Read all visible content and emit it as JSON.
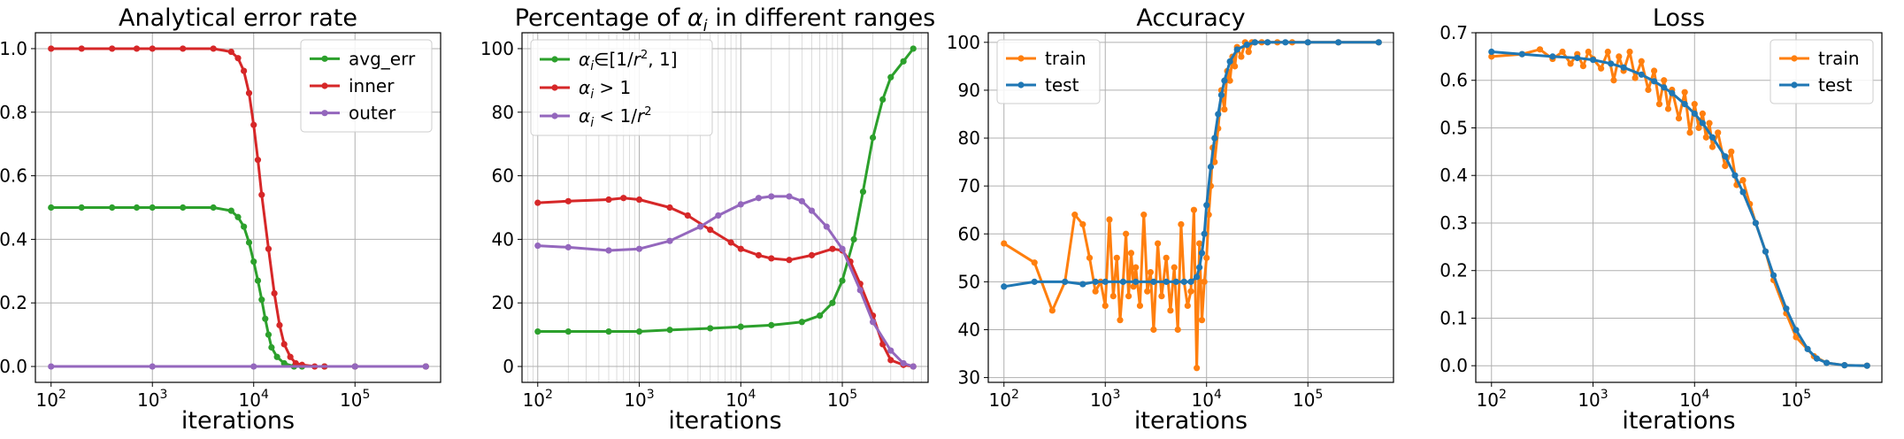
{
  "chart_data": [
    {
      "type": "line",
      "title": "Analytical error rate",
      "xlabel": "iterations",
      "xscale": "log",
      "xlim": [
        70,
        700000
      ],
      "ylim": [
        -0.05,
        1.05
      ],
      "yticks": [
        0.0,
        0.2,
        0.4,
        0.6,
        0.8,
        1.0
      ],
      "ytick_labels": [
        "0.0",
        "0.2",
        "0.4",
        "0.6",
        "0.8",
        "1.0"
      ],
      "grid": true,
      "legend_position": "top-right",
      "series": [
        {
          "name": "avg_err",
          "color": "#2ca02c",
          "x": [
            100,
            200,
            400,
            700,
            1000,
            2000,
            4000,
            6000,
            7000,
            8000,
            9000,
            10000,
            11000,
            12000,
            13000,
            14000,
            15000,
            17000,
            20000,
            25000,
            30000,
            50000,
            100000,
            500000
          ],
          "y": [
            0.5,
            0.5,
            0.5,
            0.5,
            0.5,
            0.5,
            0.5,
            0.49,
            0.47,
            0.44,
            0.39,
            0.33,
            0.27,
            0.21,
            0.15,
            0.1,
            0.06,
            0.03,
            0.01,
            0.0,
            0.0,
            0.0,
            0.0,
            0.0
          ]
        },
        {
          "name": "inner",
          "color": "#d62728",
          "x": [
            100,
            200,
            400,
            700,
            1000,
            2000,
            4000,
            6000,
            7000,
            8000,
            9000,
            10000,
            11000,
            12000,
            14000,
            16000,
            18000,
            20000,
            23000,
            26000,
            30000,
            40000,
            50000,
            100000,
            500000
          ],
          "y": [
            1.0,
            1.0,
            1.0,
            1.0,
            1.0,
            1.0,
            1.0,
            0.99,
            0.97,
            0.93,
            0.86,
            0.76,
            0.65,
            0.54,
            0.37,
            0.23,
            0.13,
            0.07,
            0.03,
            0.01,
            0.005,
            0.0,
            0.0,
            0.0,
            0.0
          ]
        },
        {
          "name": "outer",
          "color": "#9467bd",
          "x": [
            100,
            1000,
            10000,
            100000,
            500000
          ],
          "y": [
            0.0,
            0.0,
            0.0,
            0.0,
            0.0
          ]
        }
      ]
    },
    {
      "type": "line",
      "title_prefix": "Percentage of ",
      "title_symbol": "α",
      "title_sub": "i",
      "title_suffix": " in different ranges",
      "xlabel": "iterations",
      "xscale": "log",
      "xlim": [
        70,
        700000
      ],
      "ylim": [
        -5,
        105
      ],
      "yticks": [
        0,
        20,
        40,
        60,
        80,
        100
      ],
      "ytick_labels": [
        "0",
        "20",
        "40",
        "60",
        "80",
        "100"
      ],
      "grid": true,
      "minor_grid": true,
      "legend_position": "top-left",
      "series": [
        {
          "name": "αi∈[1/r2, 1]",
          "label_parts": [
            "α",
            "i",
            "∈[1/",
            "r",
            "2",
            ", 1]"
          ],
          "color": "#2ca02c",
          "x": [
            100,
            200,
            500,
            1000,
            2000,
            5000,
            10000,
            20000,
            40000,
            60000,
            80000,
            100000,
            130000,
            160000,
            200000,
            250000,
            300000,
            400000,
            500000
          ],
          "y": [
            11,
            11,
            11,
            11,
            11.5,
            12,
            12.5,
            13,
            14,
            16,
            20,
            27,
            40,
            55,
            72,
            84,
            91,
            96,
            100
          ]
        },
        {
          "name": "αi>1",
          "label_parts": [
            "α",
            "i",
            " > 1"
          ],
          "color": "#d62728",
          "x": [
            100,
            200,
            500,
            700,
            1000,
            2000,
            3000,
            5000,
            8000,
            10000,
            15000,
            20000,
            30000,
            50000,
            80000,
            100000,
            120000,
            150000,
            200000,
            250000,
            300000,
            400000,
            500000
          ],
          "y": [
            51.5,
            52,
            52.5,
            53,
            52.5,
            50,
            47.5,
            43,
            39,
            37,
            35,
            34,
            33.5,
            35,
            37,
            36.5,
            33,
            26,
            16,
            7,
            2,
            0.5,
            0
          ]
        },
        {
          "name": "αi<1/r2",
          "label_parts": [
            "α",
            "i",
            " < 1/",
            "r",
            "2",
            ""
          ],
          "color": "#9467bd",
          "x": [
            100,
            200,
            500,
            1000,
            2000,
            4000,
            6000,
            10000,
            15000,
            20000,
            30000,
            40000,
            50000,
            70000,
            100000,
            150000,
            200000,
            300000,
            400000,
            500000
          ],
          "y": [
            38,
            37.5,
            36.5,
            37,
            39.5,
            44,
            47.5,
            51,
            53,
            53.5,
            53.5,
            52,
            49,
            44,
            37,
            24,
            14,
            5,
            1,
            0
          ]
        }
      ]
    },
    {
      "type": "line",
      "title": "Accuracy",
      "xlabel": "iterations",
      "xscale": "log",
      "xlim": [
        70,
        700000
      ],
      "ylim": [
        29,
        102
      ],
      "yticks": [
        30,
        40,
        50,
        60,
        70,
        80,
        90,
        100
      ],
      "ytick_labels": [
        "30",
        "40",
        "50",
        "60",
        "70",
        "80",
        "90",
        "100"
      ],
      "grid": true,
      "legend_position": "top-left",
      "series": [
        {
          "name": "train",
          "color": "#ff7f0e",
          "x": [
            100,
            200,
            300,
            400,
            500,
            600,
            700,
            800,
            900,
            1000,
            1100,
            1200,
            1300,
            1400,
            1500,
            1600,
            1700,
            1800,
            1900,
            2000,
            2200,
            2400,
            2600,
            2800,
            3000,
            3300,
            3600,
            4000,
            4400,
            4800,
            5200,
            5600,
            6000,
            6500,
            7000,
            7500,
            8000,
            8500,
            9000,
            9500,
            10000,
            10500,
            11000,
            11500,
            12000,
            13000,
            14000,
            15000,
            16000,
            17000,
            18000,
            19000,
            20000,
            22000,
            24000,
            26000,
            28000,
            30000,
            35000,
            40000,
            50000,
            70000,
            100000,
            200000,
            500000
          ],
          "y": [
            58,
            54,
            44,
            50,
            64,
            62,
            55,
            48,
            50,
            45,
            63,
            47,
            55,
            42,
            50,
            60,
            47,
            56,
            49,
            53,
            45,
            64,
            48,
            52,
            40,
            58,
            47,
            55,
            44,
            53,
            40,
            62,
            50,
            45,
            48,
            65,
            32,
            58,
            42,
            50,
            55,
            64,
            70,
            78,
            75,
            82,
            90,
            86,
            94,
            92,
            97,
            95,
            99,
            97,
            100,
            98,
            100,
            100,
            100,
            100,
            100,
            100,
            100,
            100,
            100
          ]
        },
        {
          "name": "test",
          "color": "#1f77b4",
          "x": [
            100,
            200,
            400,
            600,
            800,
            1000,
            1500,
            2000,
            3000,
            4000,
            5000,
            6000,
            7000,
            8000,
            8500,
            9000,
            9500,
            10000,
            11000,
            12000,
            13000,
            14000,
            15000,
            17000,
            20000,
            25000,
            30000,
            40000,
            60000,
            100000,
            200000,
            500000
          ],
          "y": [
            49,
            50,
            50,
            49.5,
            50,
            50,
            50,
            50,
            50,
            50,
            50,
            50,
            50,
            51,
            53,
            56,
            60,
            66,
            74,
            80,
            85,
            89,
            92,
            96,
            98.5,
            99.5,
            100,
            100,
            100,
            100,
            100,
            100
          ]
        }
      ]
    },
    {
      "type": "line",
      "title": "Loss",
      "xlabel": "iterations",
      "xscale": "log",
      "xlim": [
        70,
        700000
      ],
      "ylim": [
        -0.035,
        0.7
      ],
      "yticks": [
        0.0,
        0.1,
        0.2,
        0.3,
        0.4,
        0.5,
        0.6,
        0.7
      ],
      "ytick_labels": [
        "0.0",
        "0.1",
        "0.2",
        "0.3",
        "0.4",
        "0.5",
        "0.6",
        "0.7"
      ],
      "grid": true,
      "legend_position": "top-right",
      "series": [
        {
          "name": "train",
          "color": "#ff7f0e",
          "x": [
            100,
            200,
            300,
            400,
            500,
            600,
            700,
            800,
            900,
            1000,
            1200,
            1400,
            1600,
            1800,
            2000,
            2300,
            2600,
            3000,
            3500,
            4000,
            4500,
            5000,
            5500,
            6000,
            7000,
            8000,
            9000,
            10000,
            11000,
            12000,
            13000,
            14000,
            15000,
            17000,
            20000,
            23000,
            26000,
            30000,
            35000,
            40000,
            50000,
            60000,
            80000,
            100000,
            150000,
            200000,
            300000,
            500000
          ],
          "y": [
            0.65,
            0.655,
            0.665,
            0.645,
            0.66,
            0.635,
            0.655,
            0.63,
            0.66,
            0.645,
            0.625,
            0.66,
            0.6,
            0.65,
            0.62,
            0.66,
            0.605,
            0.64,
            0.58,
            0.62,
            0.55,
            0.6,
            0.54,
            0.58,
            0.52,
            0.575,
            0.49,
            0.55,
            0.5,
            0.53,
            0.48,
            0.51,
            0.46,
            0.49,
            0.42,
            0.45,
            0.38,
            0.39,
            0.34,
            0.3,
            0.24,
            0.18,
            0.11,
            0.06,
            0.02,
            0.006,
            0.001,
            0.0
          ]
        },
        {
          "name": "test",
          "color": "#1f77b4",
          "x": [
            100,
            200,
            400,
            700,
            1000,
            1500,
            2000,
            3000,
            4000,
            5000,
            6000,
            8000,
            10000,
            12000,
            15000,
            20000,
            25000,
            30000,
            40000,
            50000,
            60000,
            80000,
            100000,
            130000,
            160000,
            200000,
            300000,
            500000
          ],
          "y": [
            0.66,
            0.655,
            0.65,
            0.647,
            0.643,
            0.635,
            0.627,
            0.612,
            0.598,
            0.585,
            0.573,
            0.55,
            0.53,
            0.51,
            0.48,
            0.44,
            0.4,
            0.365,
            0.3,
            0.24,
            0.19,
            0.12,
            0.075,
            0.035,
            0.015,
            0.006,
            0.001,
            0.0
          ]
        }
      ]
    }
  ]
}
